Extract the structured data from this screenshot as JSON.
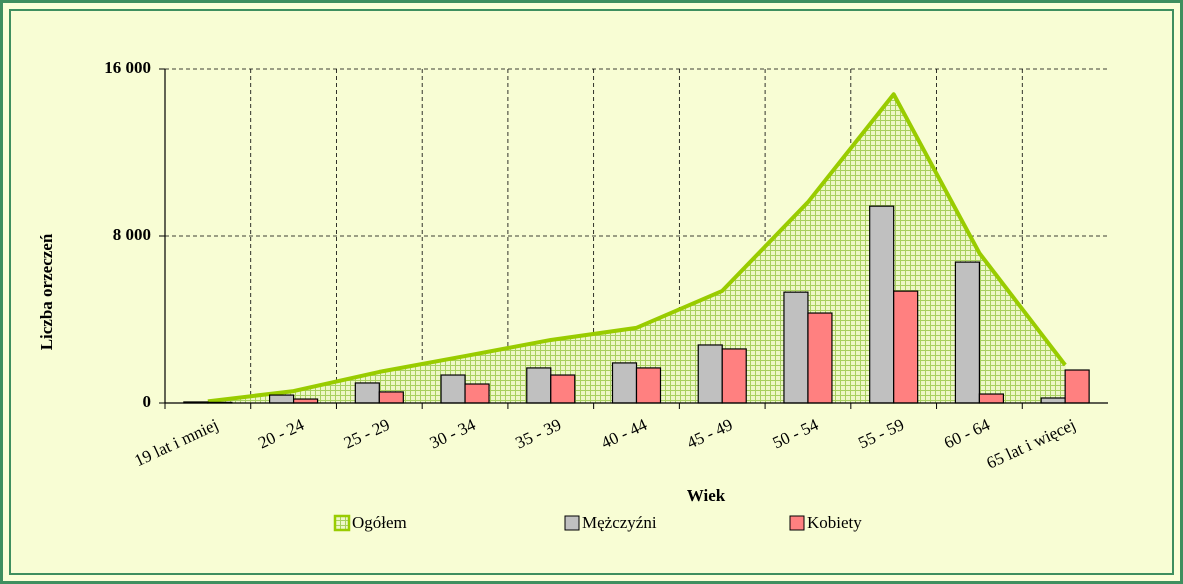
{
  "chart_data": {
    "type": "bar",
    "categories": [
      "19 lat i mniej",
      "20 - 24",
      "25 - 29",
      "30 - 34",
      "35 - 39",
      "40 - 44",
      "45 - 49",
      "50 - 54",
      "55 - 59",
      "60 - 64",
      "65 lat i więcej"
    ],
    "series": [
      {
        "name": "Ogółem",
        "type": "area",
        "color": "#99cc00",
        "values": [
          80,
          570,
          1490,
          2250,
          3020,
          3600,
          5370,
          9620,
          14790,
          7180,
          1820
        ]
      },
      {
        "name": "Mężczyźni",
        "color": "#c0c0c0",
        "values": [
          50,
          380,
          960,
          1340,
          1680,
          1920,
          2780,
          5310,
          9430,
          6750,
          240
        ]
      },
      {
        "name": "Kobiety",
        "color": "#ff8080",
        "values": [
          30,
          190,
          530,
          910,
          1340,
          1680,
          2590,
          4310,
          5360,
          430,
          1580
        ]
      }
    ],
    "xlabel": "Wiek",
    "ylabel": "Liczba orzeczeń",
    "ylim": [
      0,
      16000
    ],
    "yticks": [
      {
        "value": 0,
        "label": "0"
      },
      {
        "value": 8000,
        "label": "8 000"
      },
      {
        "value": 16000,
        "label": "16 000"
      }
    ],
    "grid": true,
    "legend": "bottom"
  }
}
